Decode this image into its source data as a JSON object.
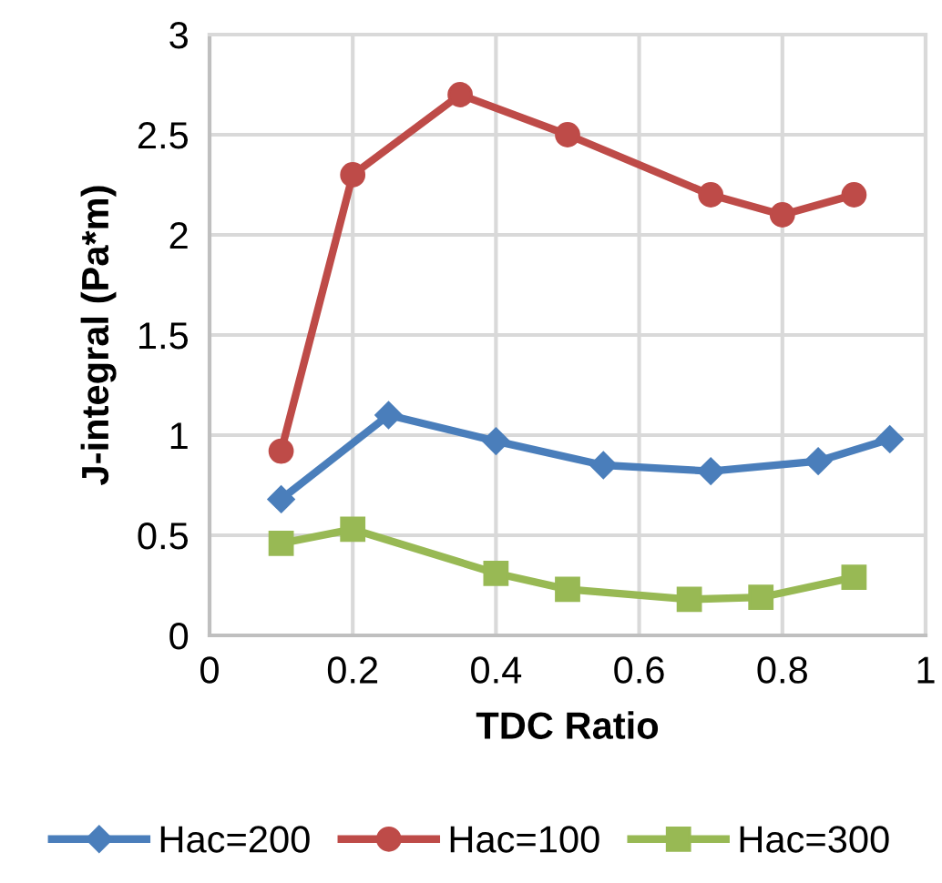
{
  "chart_data": {
    "type": "line",
    "xlabel": "TDC Ratio",
    "ylabel": "J-integral (Pa*m)",
    "xlim": [
      0,
      1
    ],
    "xticks": [
      0,
      0.2,
      0.4,
      0.6,
      0.8,
      1
    ],
    "ylim": [
      0,
      3
    ],
    "yticks": [
      0,
      0.5,
      1,
      1.5,
      2,
      2.5,
      3
    ],
    "grid": true,
    "legend": "bottom",
    "series": [
      {
        "name": "Hac=200",
        "color": "#4a7ebb",
        "marker": "diamond",
        "x": [
          0.1,
          0.25,
          0.4,
          0.55,
          0.7,
          0.85,
          0.95
        ],
        "values": [
          0.68,
          1.1,
          0.97,
          0.85,
          0.82,
          0.87,
          0.98
        ]
      },
      {
        "name": "Hac=100",
        "color": "#be4b48",
        "marker": "circle",
        "x": [
          0.1,
          0.2,
          0.35,
          0.5,
          0.7,
          0.8,
          0.9
        ],
        "values": [
          0.92,
          2.3,
          2.7,
          2.5,
          2.2,
          2.1,
          2.2
        ]
      },
      {
        "name": "Hac=300",
        "color": "#98b954",
        "marker": "square",
        "x": [
          0.1,
          0.2,
          0.4,
          0.5,
          0.67,
          0.77,
          0.9
        ],
        "values": [
          0.46,
          0.53,
          0.31,
          0.23,
          0.18,
          0.19,
          0.29
        ]
      }
    ]
  }
}
